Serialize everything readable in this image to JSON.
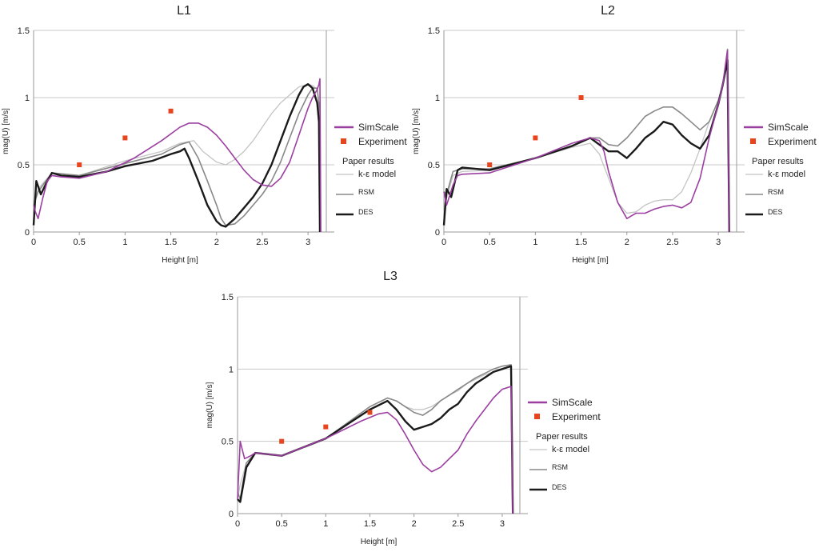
{
  "chart_data": [
    {
      "type": "line",
      "title": "L1",
      "xlabel": "Height [m]",
      "ylabel": "mag(U) [m/s]",
      "xlim": [
        0,
        3.2
      ],
      "ylim": [
        0,
        1.5
      ],
      "x_ticks": [
        "0",
        "0.5",
        "1",
        "1.5",
        "2",
        "2.5",
        "3"
      ],
      "y_ticks": [
        "0",
        "0.5",
        "1",
        "1.5"
      ],
      "grid": "horizontal",
      "legend_position": "right",
      "legend": {
        "simscale": "SimScale",
        "experiment": "Experiment",
        "paper_header": "Paper results",
        "ke": "k-ε model",
        "rsm": "RSM",
        "des": "DES"
      },
      "series": [
        {
          "name": "SimScale",
          "color": "#9b3fa0",
          "x": [
            0,
            0.02,
            0.05,
            0.1,
            0.15,
            0.2,
            0.3,
            0.5,
            0.8,
            1.1,
            1.4,
            1.6,
            1.7,
            1.8,
            1.9,
            2.0,
            2.1,
            2.2,
            2.3,
            2.4,
            2.5,
            2.6,
            2.7,
            2.8,
            2.9,
            3.0,
            3.05,
            3.1,
            3.12,
            3.13,
            3.14
          ],
          "y": [
            0.2,
            0.15,
            0.1,
            0.25,
            0.38,
            0.42,
            0.41,
            0.4,
            0.45,
            0.55,
            0.68,
            0.78,
            0.81,
            0.81,
            0.78,
            0.72,
            0.64,
            0.55,
            0.46,
            0.39,
            0.35,
            0.34,
            0.4,
            0.52,
            0.72,
            0.92,
            1.0,
            1.06,
            1.1,
            1.14,
            0.0
          ]
        },
        {
          "name": "Experiment",
          "x": [
            0.5,
            1.0,
            1.5
          ],
          "y": [
            0.5,
            0.7,
            0.9
          ]
        },
        {
          "name": "k-ε model",
          "color": "#c4c4c4",
          "x": [
            0,
            0.05,
            0.2,
            0.5,
            1.0,
            1.4,
            1.6,
            1.75,
            1.85,
            2.0,
            2.1,
            2.2,
            2.3,
            2.4,
            2.5,
            2.6,
            2.7,
            2.8,
            2.9,
            3.0,
            3.05,
            3.1,
            3.12,
            3.13
          ],
          "y": [
            0.2,
            0.32,
            0.44,
            0.42,
            0.53,
            0.6,
            0.66,
            0.68,
            0.6,
            0.52,
            0.5,
            0.54,
            0.6,
            0.68,
            0.78,
            0.88,
            0.96,
            1.02,
            1.08,
            1.1,
            1.09,
            1.06,
            0.95,
            0.0
          ]
        },
        {
          "name": "RSM",
          "color": "#888888",
          "x": [
            0,
            0.05,
            0.2,
            0.5,
            1.0,
            1.4,
            1.6,
            1.7,
            1.8,
            1.9,
            2.0,
            2.05,
            2.1,
            2.2,
            2.3,
            2.4,
            2.5,
            2.6,
            2.7,
            2.8,
            2.9,
            3.0,
            3.05,
            3.1,
            3.12,
            3.13
          ],
          "y": [
            0.2,
            0.3,
            0.44,
            0.42,
            0.51,
            0.58,
            0.65,
            0.67,
            0.55,
            0.38,
            0.2,
            0.1,
            0.05,
            0.06,
            0.12,
            0.2,
            0.28,
            0.38,
            0.52,
            0.7,
            0.88,
            1.02,
            1.07,
            1.07,
            0.95,
            0.0
          ]
        },
        {
          "name": "DES",
          "color": "#1a1a1a",
          "x": [
            0,
            0.03,
            0.08,
            0.15,
            0.2,
            0.3,
            0.5,
            0.8,
            1.0,
            1.3,
            1.5,
            1.6,
            1.65,
            1.7,
            1.8,
            1.9,
            2.0,
            2.05,
            2.1,
            2.2,
            2.3,
            2.4,
            2.5,
            2.6,
            2.7,
            2.8,
            2.9,
            2.95,
            3.0,
            3.05,
            3.1,
            3.12,
            3.13
          ],
          "y": [
            0.05,
            0.38,
            0.28,
            0.38,
            0.44,
            0.42,
            0.41,
            0.45,
            0.49,
            0.53,
            0.58,
            0.6,
            0.62,
            0.55,
            0.38,
            0.2,
            0.08,
            0.05,
            0.04,
            0.1,
            0.18,
            0.26,
            0.36,
            0.5,
            0.68,
            0.86,
            1.02,
            1.08,
            1.1,
            1.07,
            0.96,
            0.82,
            0.0
          ]
        }
      ]
    },
    {
      "type": "line",
      "title": "L2",
      "xlabel": "Height [m]",
      "ylabel": "mag(U) [m/s]",
      "xlim": [
        0,
        3.2
      ],
      "ylim": [
        0,
        1.5
      ],
      "x_ticks": [
        "0",
        "0.5",
        "1",
        "1.5",
        "2",
        "2.5",
        "3"
      ],
      "y_ticks": [
        "0",
        "0.5",
        "1",
        "1.5"
      ],
      "grid": "horizontal",
      "legend_position": "right",
      "legend": {
        "simscale": "SimScale",
        "experiment": "Experiment",
        "paper_header": "Paper results",
        "ke": "k-ε model",
        "rsm": "RSM",
        "des": "DES"
      },
      "series": [
        {
          "name": "SimScale",
          "color": "#9b3fa0",
          "x": [
            0,
            0.03,
            0.1,
            0.15,
            0.2,
            0.5,
            1.0,
            1.4,
            1.6,
            1.7,
            1.75,
            1.8,
            1.9,
            2.0,
            2.05,
            2.1,
            2.2,
            2.3,
            2.4,
            2.5,
            2.6,
            2.7,
            2.8,
            2.9,
            3.0,
            3.05,
            3.1,
            3.12
          ],
          "y": [
            0.3,
            0.2,
            0.35,
            0.42,
            0.43,
            0.44,
            0.55,
            0.66,
            0.7,
            0.68,
            0.6,
            0.45,
            0.22,
            0.1,
            0.12,
            0.14,
            0.14,
            0.17,
            0.19,
            0.2,
            0.18,
            0.22,
            0.4,
            0.7,
            0.95,
            1.1,
            1.35,
            0.0
          ]
        },
        {
          "name": "Experiment",
          "x": [
            0.5,
            1.0,
            1.5
          ],
          "y": [
            0.5,
            0.7,
            1.0
          ]
        },
        {
          "name": "k-ε model",
          "color": "#c4c4c4",
          "x": [
            0,
            0.03,
            0.1,
            0.2,
            0.5,
            1.0,
            1.4,
            1.6,
            1.7,
            1.8,
            1.9,
            2.0,
            2.1,
            2.2,
            2.3,
            2.4,
            2.5,
            2.6,
            2.7,
            2.8,
            2.9,
            3.0,
            3.05,
            3.1,
            3.12
          ],
          "y": [
            0.3,
            0.25,
            0.42,
            0.45,
            0.46,
            0.55,
            0.63,
            0.66,
            0.58,
            0.4,
            0.22,
            0.14,
            0.15,
            0.2,
            0.23,
            0.24,
            0.24,
            0.3,
            0.44,
            0.62,
            0.82,
            0.98,
            1.08,
            1.28,
            0.0
          ]
        },
        {
          "name": "RSM",
          "color": "#888888",
          "x": [
            0,
            0.03,
            0.1,
            0.2,
            0.5,
            1.0,
            1.4,
            1.6,
            1.7,
            1.8,
            1.9,
            2.0,
            2.1,
            2.2,
            2.3,
            2.4,
            2.5,
            2.6,
            2.7,
            2.8,
            2.9,
            3.0,
            3.05,
            3.1,
            3.12
          ],
          "y": [
            0.3,
            0.28,
            0.45,
            0.47,
            0.47,
            0.55,
            0.64,
            0.7,
            0.7,
            0.65,
            0.64,
            0.7,
            0.78,
            0.86,
            0.9,
            0.93,
            0.93,
            0.88,
            0.82,
            0.76,
            0.82,
            0.98,
            1.1,
            1.36,
            0.0
          ]
        },
        {
          "name": "DES",
          "color": "#1a1a1a",
          "x": [
            0,
            0.03,
            0.08,
            0.15,
            0.2,
            0.5,
            1.0,
            1.4,
            1.6,
            1.7,
            1.8,
            1.9,
            2.0,
            2.1,
            2.2,
            2.3,
            2.4,
            2.5,
            2.6,
            2.7,
            2.8,
            2.9,
            3.0,
            3.05,
            3.1,
            3.12
          ],
          "y": [
            0.05,
            0.32,
            0.26,
            0.46,
            0.48,
            0.46,
            0.55,
            0.64,
            0.7,
            0.65,
            0.6,
            0.6,
            0.55,
            0.62,
            0.7,
            0.75,
            0.82,
            0.8,
            0.72,
            0.66,
            0.62,
            0.72,
            0.95,
            1.1,
            1.28,
            0.0
          ]
        }
      ]
    },
    {
      "type": "line",
      "title": "L3",
      "xlabel": "Height [m]",
      "ylabel": "mag(U) [m/s]",
      "xlim": [
        0,
        3.2
      ],
      "ylim": [
        0,
        1.5
      ],
      "x_ticks": [
        "0",
        "0.5",
        "1",
        "1.5",
        "2",
        "2.5",
        "3"
      ],
      "y_ticks": [
        "0",
        "0.5",
        "1",
        "1.5"
      ],
      "grid": "horizontal",
      "legend_position": "right",
      "legend": {
        "simscale": "SimScale",
        "experiment": "Experiment",
        "paper_header": "Paper results",
        "ke": "k-ε model",
        "rsm": "RSM",
        "des": "DES"
      },
      "series": [
        {
          "name": "SimScale",
          "color": "#9b3fa0",
          "x": [
            0,
            0.03,
            0.08,
            0.15,
            0.2,
            0.5,
            1.0,
            1.4,
            1.6,
            1.7,
            1.8,
            1.9,
            2.0,
            2.1,
            2.2,
            2.3,
            2.4,
            2.5,
            2.6,
            2.7,
            2.8,
            2.9,
            3.0,
            3.1,
            3.12
          ],
          "y": [
            0.1,
            0.5,
            0.38,
            0.4,
            0.42,
            0.4,
            0.52,
            0.64,
            0.69,
            0.7,
            0.65,
            0.55,
            0.44,
            0.34,
            0.29,
            0.32,
            0.38,
            0.44,
            0.55,
            0.64,
            0.72,
            0.8,
            0.86,
            0.88,
            0.0
          ]
        },
        {
          "name": "Experiment",
          "x": [
            0.5,
            1.0,
            1.5
          ],
          "y": [
            0.5,
            0.6,
            0.7
          ]
        },
        {
          "name": "k-ε model",
          "color": "#c4c4c4",
          "x": [
            0,
            0.03,
            0.1,
            0.2,
            0.5,
            1.0,
            1.5,
            1.7,
            1.8,
            1.9,
            2.0,
            2.1,
            2.2,
            2.3,
            2.4,
            2.5,
            2.6,
            2.7,
            2.8,
            2.9,
            3.0,
            3.1,
            3.12
          ],
          "y": [
            0.1,
            0.2,
            0.35,
            0.42,
            0.4,
            0.52,
            0.74,
            0.8,
            0.78,
            0.74,
            0.72,
            0.72,
            0.74,
            0.78,
            0.82,
            0.85,
            0.9,
            0.93,
            0.96,
            0.98,
            1.0,
            1.02,
            0.0
          ]
        },
        {
          "name": "RSM",
          "color": "#888888",
          "x": [
            0,
            0.03,
            0.1,
            0.2,
            0.5,
            1.0,
            1.5,
            1.7,
            1.8,
            1.9,
            2.0,
            2.1,
            2.2,
            2.3,
            2.4,
            2.5,
            2.6,
            2.7,
            2.8,
            2.9,
            3.0,
            3.1,
            3.12
          ],
          "y": [
            0.15,
            0.1,
            0.35,
            0.42,
            0.4,
            0.52,
            0.74,
            0.8,
            0.78,
            0.74,
            0.7,
            0.68,
            0.72,
            0.78,
            0.82,
            0.86,
            0.9,
            0.94,
            0.97,
            1.0,
            1.02,
            1.03,
            0.0
          ]
        },
        {
          "name": "DES",
          "color": "#1a1a1a",
          "x": [
            0,
            0.03,
            0.1,
            0.2,
            0.5,
            1.0,
            1.5,
            1.7,
            1.8,
            1.9,
            2.0,
            2.1,
            2.2,
            2.3,
            2.4,
            2.5,
            2.6,
            2.7,
            2.8,
            2.9,
            3.0,
            3.1,
            3.12
          ],
          "y": [
            0.1,
            0.08,
            0.32,
            0.42,
            0.4,
            0.52,
            0.72,
            0.78,
            0.72,
            0.64,
            0.58,
            0.6,
            0.62,
            0.66,
            0.72,
            0.76,
            0.84,
            0.9,
            0.94,
            0.98,
            1.0,
            1.02,
            0.0
          ]
        }
      ]
    }
  ]
}
